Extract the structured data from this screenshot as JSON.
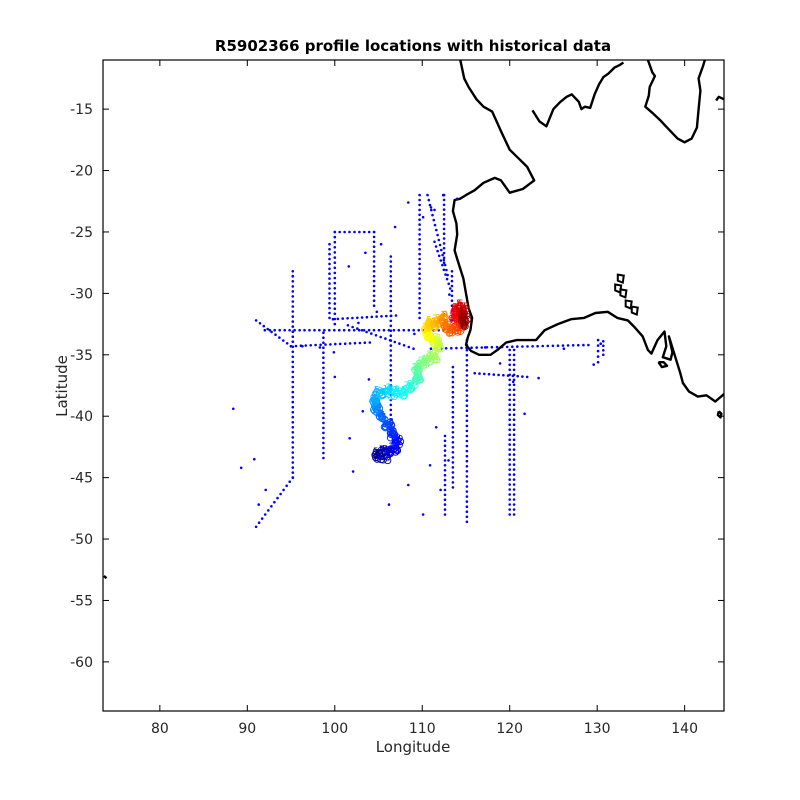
{
  "chart_data": {
    "type": "scatter",
    "title": "R5902366 profile locations with historical data",
    "xlabel": "Longitude",
    "ylabel": "Latitude",
    "xlim": [
      73.5,
      144.5
    ],
    "ylim": [
      -64,
      -11
    ],
    "x_ticks": [
      80,
      90,
      100,
      110,
      120,
      130,
      140
    ],
    "y_ticks": [
      -15,
      -20,
      -25,
      -30,
      -35,
      -40,
      -45,
      -50,
      -55,
      -60
    ],
    "grid": false,
    "legend": "none",
    "colors": {
      "historical": "#0000ff",
      "coast": "#000000",
      "trajectory_start": "#00008f",
      "trajectory_end": "#aa0000"
    },
    "series": [
      {
        "kind": "coastline",
        "points": [
          [
            114.2,
            -10.5
          ],
          [
            114.8,
            -12.5
          ],
          [
            115.3,
            -13.2
          ],
          [
            116.2,
            -14.2
          ],
          [
            117.0,
            -14.8
          ],
          [
            118.0,
            -15.2
          ],
          [
            119.0,
            -16.8
          ],
          [
            120.0,
            -18.3
          ],
          [
            121.0,
            -19.0
          ],
          [
            122.0,
            -19.7
          ],
          [
            122.8,
            -20.8
          ],
          [
            121.5,
            -21.5
          ],
          [
            120.0,
            -21.8
          ],
          [
            119.0,
            -20.8
          ],
          [
            118.3,
            -20.6
          ],
          [
            117.0,
            -21.0
          ],
          [
            116.0,
            -21.6
          ],
          [
            115.0,
            -22.0
          ],
          [
            114.3,
            -22.3
          ],
          [
            113.7,
            -22.4
          ],
          [
            113.5,
            -23.3
          ],
          [
            113.9,
            -24.3
          ],
          [
            114.0,
            -25.2
          ],
          [
            113.7,
            -26.5
          ],
          [
            114.0,
            -27.2
          ],
          [
            114.7,
            -28.8
          ],
          [
            115.0,
            -30.0
          ],
          [
            115.3,
            -31.2
          ],
          [
            115.7,
            -32.0
          ],
          [
            115.5,
            -33.0
          ],
          [
            115.2,
            -33.6
          ],
          [
            115.0,
            -34.2
          ],
          [
            115.6,
            -34.7
          ],
          [
            116.5,
            -35.0
          ],
          [
            117.8,
            -35.0
          ],
          [
            118.6,
            -34.6
          ],
          [
            119.6,
            -34.0
          ],
          [
            120.8,
            -33.8
          ],
          [
            121.9,
            -33.8
          ],
          [
            123.0,
            -33.8
          ],
          [
            124.0,
            -33.0
          ],
          [
            125.5,
            -32.5
          ],
          [
            127.0,
            -32.1
          ],
          [
            128.5,
            -32.0
          ],
          [
            129.8,
            -31.6
          ],
          [
            131.2,
            -31.5
          ],
          [
            132.3,
            -32.0
          ],
          [
            133.5,
            -32.2
          ],
          [
            134.2,
            -32.7
          ],
          [
            135.2,
            -33.5
          ],
          [
            135.8,
            -34.6
          ],
          [
            136.2,
            -34.9
          ],
          [
            136.9,
            -33.8
          ],
          [
            137.7,
            -33.1
          ],
          [
            137.9,
            -34.3
          ],
          [
            137.5,
            -35.2
          ],
          [
            138.4,
            -35.4
          ],
          [
            138.6,
            -34.8
          ],
          [
            138.2,
            -33.5
          ],
          [
            139.5,
            -36.5
          ],
          [
            139.8,
            -37.3
          ],
          [
            140.5,
            -38.0
          ],
          [
            141.5,
            -38.4
          ],
          [
            142.5,
            -38.3
          ],
          [
            143.5,
            -38.8
          ],
          [
            144.5,
            -38.2
          ]
        ]
      },
      {
        "kind": "coastline",
        "points": [
          [
            122.6,
            -15.1
          ],
          [
            123.4,
            -16.0
          ],
          [
            124.2,
            -16.4
          ],
          [
            125.0,
            -15.0
          ],
          [
            125.8,
            -14.4
          ],
          [
            126.5,
            -14.0
          ],
          [
            127.1,
            -13.8
          ],
          [
            127.9,
            -14.4
          ],
          [
            128.2,
            -15.0
          ],
          [
            128.6,
            -14.8
          ],
          [
            129.2,
            -14.9
          ],
          [
            129.7,
            -13.8
          ],
          [
            130.2,
            -13.0
          ],
          [
            130.7,
            -12.4
          ],
          [
            131.3,
            -12.1
          ],
          [
            132.0,
            -11.6
          ],
          [
            132.6,
            -11.4
          ],
          [
            133.0,
            -11.2
          ]
        ]
      },
      {
        "kind": "coastline",
        "points": [
          [
            135.8,
            -11.0
          ],
          [
            136.3,
            -12.0
          ],
          [
            136.6,
            -12.3
          ],
          [
            136.0,
            -13.2
          ],
          [
            135.9,
            -13.9
          ],
          [
            135.5,
            -14.8
          ],
          [
            136.3,
            -15.3
          ],
          [
            137.2,
            -15.9
          ],
          [
            138.0,
            -16.5
          ],
          [
            139.2,
            -17.4
          ],
          [
            140.0,
            -17.7
          ],
          [
            140.8,
            -17.4
          ],
          [
            141.4,
            -16.5
          ],
          [
            141.6,
            -15.0
          ],
          [
            141.8,
            -13.5
          ],
          [
            141.6,
            -12.5
          ],
          [
            142.1,
            -11.5
          ],
          [
            142.4,
            -10.8
          ]
        ]
      },
      {
        "kind": "coastline",
        "points": [
          [
            143.6,
            -14.3
          ],
          [
            143.9,
            -14.0
          ],
          [
            144.5,
            -14.2
          ]
        ]
      },
      {
        "kind": "coastline",
        "points": [
          [
            137.0,
            -35.6
          ],
          [
            137.6,
            -35.6
          ],
          [
            138.0,
            -35.9
          ],
          [
            137.4,
            -36.0
          ],
          [
            137.0,
            -35.6
          ]
        ]
      },
      {
        "kind": "coastline",
        "points": [
          [
            143.9,
            -39.6
          ],
          [
            144.2,
            -39.8
          ],
          [
            144.1,
            -40.1
          ],
          [
            143.8,
            -39.9
          ],
          [
            143.9,
            -39.6
          ]
        ]
      },
      {
        "kind": "coastline",
        "points": [
          [
            73.6,
            -53.0
          ],
          [
            73.9,
            -53.2
          ]
        ]
      },
      {
        "kind": "island_pair",
        "points": [
          [
            132.7,
            -28.8
          ],
          [
            132.4,
            -29.6
          ],
          [
            133.0,
            -30.0
          ],
          [
            133.6,
            -30.9
          ],
          [
            134.3,
            -31.4
          ]
        ]
      },
      {
        "name": "historical",
        "kind": "historical_points",
        "points": [
          [
            112.4,
            -22.0
          ],
          [
            114.0,
            -22.3
          ],
          [
            111.4,
            -23.2
          ],
          [
            111.0,
            -23.0
          ],
          [
            103.5,
            -26.7
          ],
          [
            101.6,
            -27.8
          ],
          [
            105.3,
            -26.0
          ],
          [
            106.9,
            -24.6
          ],
          [
            110.1,
            -23.8
          ],
          [
            108.4,
            -22.6
          ],
          [
            95.2,
            -28.6
          ],
          [
            96.3,
            -34.3
          ],
          [
            99.9,
            -34.8
          ],
          [
            102.7,
            -32.4
          ],
          [
            104.8,
            -31.5
          ],
          [
            109.1,
            -33.3
          ],
          [
            112.5,
            -31.7
          ],
          [
            113.1,
            -30.1
          ],
          [
            117.2,
            -34.4
          ],
          [
            118.9,
            -35.7
          ],
          [
            120.4,
            -37.2
          ],
          [
            121.7,
            -39.8
          ],
          [
            123.3,
            -36.9
          ],
          [
            126.2,
            -34.5
          ],
          [
            129.6,
            -35.8
          ],
          [
            130.4,
            -34.1
          ],
          [
            88.4,
            -39.4
          ],
          [
            89.3,
            -44.2
          ],
          [
            90.8,
            -43.5
          ],
          [
            91.3,
            -47.2
          ],
          [
            92.1,
            -46.0
          ],
          [
            98.3,
            -34.4
          ],
          [
            100.0,
            -36.8
          ],
          [
            102.1,
            -44.5
          ],
          [
            106.2,
            -47.2
          ],
          [
            108.4,
            -45.6
          ],
          [
            110.9,
            -44.0
          ],
          [
            111.6,
            -40.9
          ],
          [
            113.0,
            -43.6
          ],
          [
            103.2,
            -39.6
          ],
          [
            103.9,
            -37.0
          ],
          [
            110.1,
            -48.0
          ],
          [
            112.1,
            -46.0
          ],
          [
            105.3,
            -42.5
          ],
          [
            101.7,
            -41.8
          ]
        ]
      }
    ],
    "track_lines_historical": [
      {
        "name": "",
        "from": [
          91.0,
          -49.0
        ],
        "to": [
          95.2,
          -45.0
        ]
      },
      {
        "name": "",
        "from": [
          95.2,
          -45.0
        ],
        "to": [
          95.2,
          -28.2
        ]
      },
      {
        "name": "",
        "from": [
          91.0,
          -32.2
        ],
        "to": [
          95.0,
          -34.3
        ]
      },
      {
        "name": "",
        "from": [
          95.0,
          -34.3
        ],
        "to": [
          104.0,
          -34.0
        ]
      },
      {
        "name": "",
        "from": [
          92.0,
          -33.0
        ],
        "to": [
          113.0,
          -33.0
        ]
      },
      {
        "name": "",
        "from": [
          98.7,
          -43.4
        ],
        "to": [
          98.7,
          -33.2
        ]
      },
      {
        "name": "",
        "from": [
          100.0,
          -32.5
        ],
        "to": [
          100.0,
          -25.0
        ]
      },
      {
        "name": "",
        "from": [
          99.4,
          -32.0
        ],
        "to": [
          99.4,
          -26.0
        ]
      },
      {
        "name": "",
        "from": [
          100.0,
          -25.0
        ],
        "to": [
          104.5,
          -25.0
        ]
      },
      {
        "name": "",
        "from": [
          104.5,
          -25.0
        ],
        "to": [
          104.5,
          -31.0
        ]
      },
      {
        "name": "",
        "from": [
          99.8,
          -32.1
        ],
        "to": [
          107.0,
          -31.8
        ]
      },
      {
        "name": "",
        "from": [
          101.5,
          -32.6
        ],
        "to": [
          109.0,
          -34.5
        ]
      },
      {
        "name": "",
        "from": [
          106.4,
          -27.0
        ],
        "to": [
          106.4,
          -41.5
        ]
      },
      {
        "name": "",
        "from": [
          109.7,
          -22.0
        ],
        "to": [
          109.7,
          -32.0
        ]
      },
      {
        "name": "",
        "from": [
          110.6,
          -22.0
        ],
        "to": [
          112.9,
          -28.5
        ]
      },
      {
        "name": "",
        "from": [
          112.5,
          -22.0
        ],
        "to": [
          112.5,
          -27.5
        ]
      },
      {
        "name": "",
        "from": [
          113.4,
          -28.2
        ],
        "to": [
          113.4,
          -32.6
        ]
      },
      {
        "name": "",
        "from": [
          111.4,
          -25.8
        ],
        "to": [
          113.2,
          -29.6
        ]
      },
      {
        "name": "",
        "from": [
          115.1,
          -33.8
        ],
        "to": [
          115.1,
          -48.6
        ]
      },
      {
        "name": "",
        "from": [
          113.5,
          -36.0
        ],
        "to": [
          113.5,
          -45.8
        ]
      },
      {
        "name": "",
        "from": [
          120.0,
          -34.6
        ],
        "to": [
          120.0,
          -48.0
        ]
      },
      {
        "name": "",
        "from": [
          120.5,
          -34.6
        ],
        "to": [
          120.5,
          -48.0
        ]
      },
      {
        "name": "",
        "from": [
          111.0,
          -34.5
        ],
        "to": [
          129.0,
          -34.2
        ]
      },
      {
        "name": "",
        "from": [
          116.0,
          -36.5
        ],
        "to": [
          122.0,
          -36.8
        ]
      },
      {
        "name": "",
        "from": [
          112.6,
          -41.6
        ],
        "to": [
          112.6,
          -48.0
        ]
      },
      {
        "name": "",
        "from": [
          130.1,
          -33.8
        ],
        "to": [
          130.1,
          -35.6
        ]
      },
      {
        "name": "",
        "from": [
          130.7,
          -33.9
        ],
        "to": [
          130.7,
          -35.0
        ]
      }
    ],
    "trajectory": [
      [
        104.6,
        -43.4
      ],
      [
        105.0,
        -43.1
      ],
      [
        105.8,
        -43.4
      ],
      [
        106.2,
        -42.8
      ],
      [
        107.1,
        -42.9
      ],
      [
        107.3,
        -42.2
      ],
      [
        106.6,
        -41.8
      ],
      [
        106.6,
        -41.1
      ],
      [
        105.8,
        -40.7
      ],
      [
        105.3,
        -40.1
      ],
      [
        104.9,
        -39.6
      ],
      [
        104.6,
        -39.1
      ],
      [
        104.6,
        -38.5
      ],
      [
        105.4,
        -38.1
      ],
      [
        106.3,
        -38.1
      ],
      [
        107.1,
        -38.3
      ],
      [
        108.1,
        -38.0
      ],
      [
        108.9,
        -37.5
      ],
      [
        109.6,
        -36.9
      ],
      [
        109.3,
        -36.3
      ],
      [
        110.0,
        -35.8
      ],
      [
        110.8,
        -35.5
      ],
      [
        111.6,
        -35.1
      ],
      [
        112.0,
        -34.3
      ],
      [
        111.4,
        -33.9
      ],
      [
        110.8,
        -33.8
      ],
      [
        110.6,
        -33.1
      ],
      [
        110.5,
        -32.6
      ],
      [
        111.2,
        -32.6
      ],
      [
        111.9,
        -32.4
      ],
      [
        112.5,
        -32.1
      ],
      [
        112.7,
        -32.8
      ],
      [
        113.3,
        -33.0
      ],
      [
        114.1,
        -33.0
      ],
      [
        114.6,
        -32.6
      ],
      [
        114.1,
        -32.2
      ],
      [
        113.6,
        -31.8
      ],
      [
        114.1,
        -31.2
      ],
      [
        114.8,
        -31.3
      ],
      [
        114.6,
        -32.0
      ],
      [
        115.0,
        -32.3
      ],
      [
        114.5,
        -32.5
      ]
    ]
  }
}
